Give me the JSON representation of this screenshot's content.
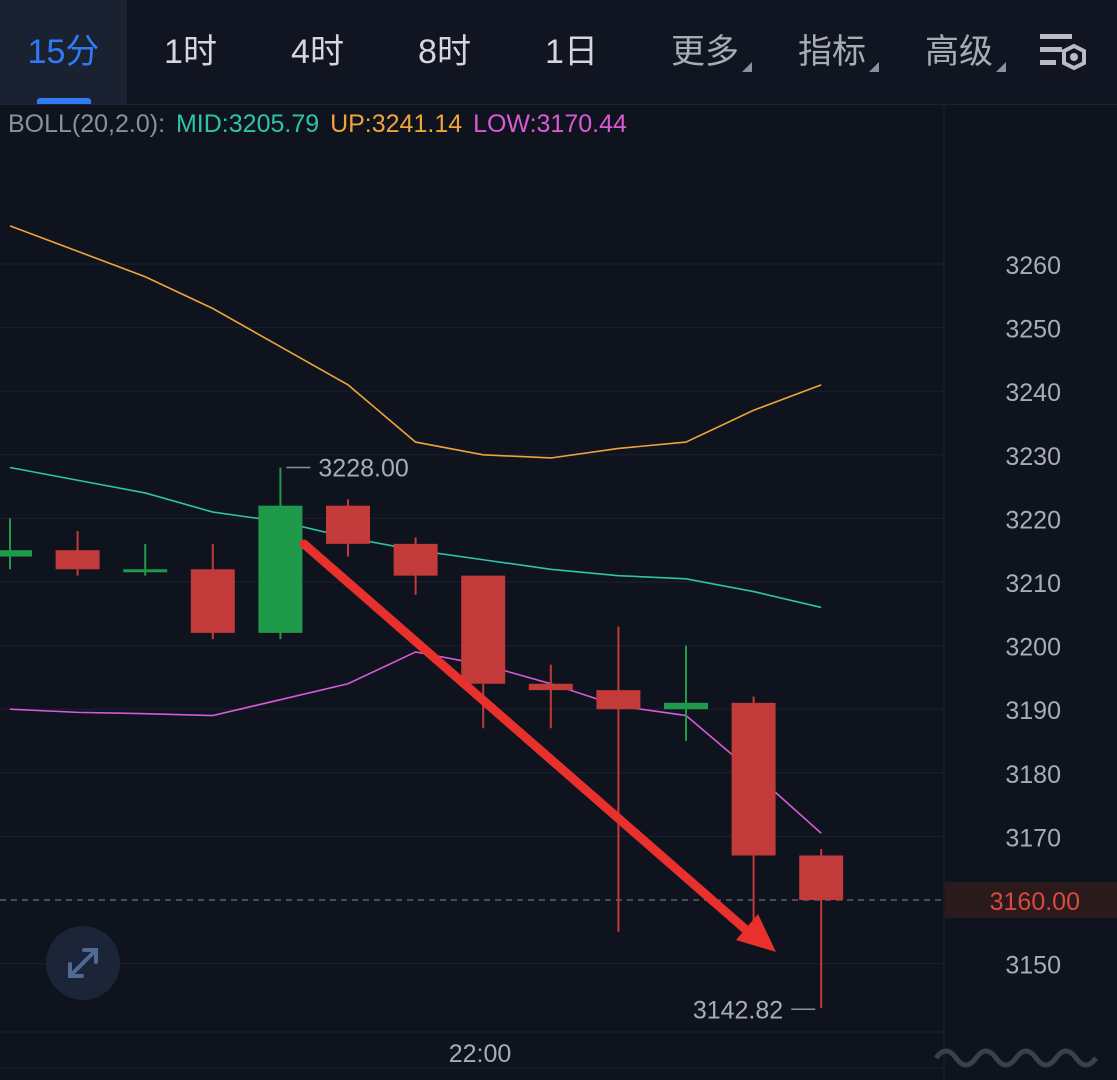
{
  "tabs": [
    {
      "label": "15分",
      "active": true
    },
    {
      "label": "1时"
    },
    {
      "label": "4时"
    },
    {
      "label": "8时"
    },
    {
      "label": "1日"
    },
    {
      "label": "更多",
      "dropdown": true
    },
    {
      "label": "指标",
      "dropdown": true
    },
    {
      "label": "高级",
      "dropdown": true
    }
  ],
  "icons": {
    "settings": "chart-settings-icon",
    "expand": "expand-arrows-icon"
  },
  "indicator": {
    "name": "BOLL(20,2.0):",
    "mid": "MID:3205.79",
    "up": "UP:3241.14",
    "low": "LOW:3170.44"
  },
  "colors": {
    "mid": "#2ec4a8",
    "up": "#f0a33a",
    "low": "#d85ad6",
    "up_candle": "#1f9a4b",
    "down_candle": "#c23a3a",
    "arrow": "#e8302d",
    "active_tab": "#2f7bf5"
  },
  "chart_data": {
    "type": "candlestick",
    "y_ticks": [
      3260,
      3250,
      3240,
      3230,
      3220,
      3210,
      3200,
      3190,
      3180,
      3170,
      3150
    ],
    "x_label": "22:00",
    "current_price": "3160.00",
    "high_label": "3228.00",
    "low_label": "3142.82",
    "candles": [
      {
        "open": 3214,
        "close": 3215,
        "high": 3220,
        "low": 3212
      },
      {
        "open": 3215,
        "close": 3212,
        "high": 3218,
        "low": 3211
      },
      {
        "open": 3212,
        "close": 3212,
        "high": 3216,
        "low": 3211
      },
      {
        "open": 3212,
        "close": 3202,
        "high": 3216,
        "low": 3201
      },
      {
        "open": 3202,
        "close": 3222,
        "high": 3228,
        "low": 3201
      },
      {
        "open": 3222,
        "close": 3216,
        "high": 3223,
        "low": 3214
      },
      {
        "open": 3216,
        "close": 3211,
        "high": 3217,
        "low": 3208
      },
      {
        "open": 3211,
        "close": 3194,
        "high": 3211,
        "low": 3187
      },
      {
        "open": 3194,
        "close": 3193,
        "high": 3197,
        "low": 3187
      },
      {
        "open": 3193,
        "close": 3190,
        "high": 3203,
        "low": 3155
      },
      {
        "open": 3190,
        "close": 3191,
        "high": 3200,
        "low": 3185
      },
      {
        "open": 3191,
        "close": 3167,
        "high": 3192,
        "low": 3156
      },
      {
        "open": 3167,
        "close": 3160,
        "high": 3168,
        "low": 3143
      }
    ],
    "boll_up": [
      3266,
      3262,
      3258,
      3253,
      3247,
      3241,
      3232,
      3230,
      3229.5,
      3231,
      3232,
      3237,
      3241
    ],
    "boll_mid": [
      3228,
      3226,
      3224,
      3221,
      3219.5,
      3217,
      3215,
      3213.5,
      3212,
      3211,
      3210.5,
      3208.5,
      3206
    ],
    "boll_low": [
      3190,
      3189.5,
      3189.3,
      3189,
      3191.5,
      3194,
      3199,
      3197,
      3194,
      3190.5,
      3189,
      3180,
      3170.5
    ]
  }
}
